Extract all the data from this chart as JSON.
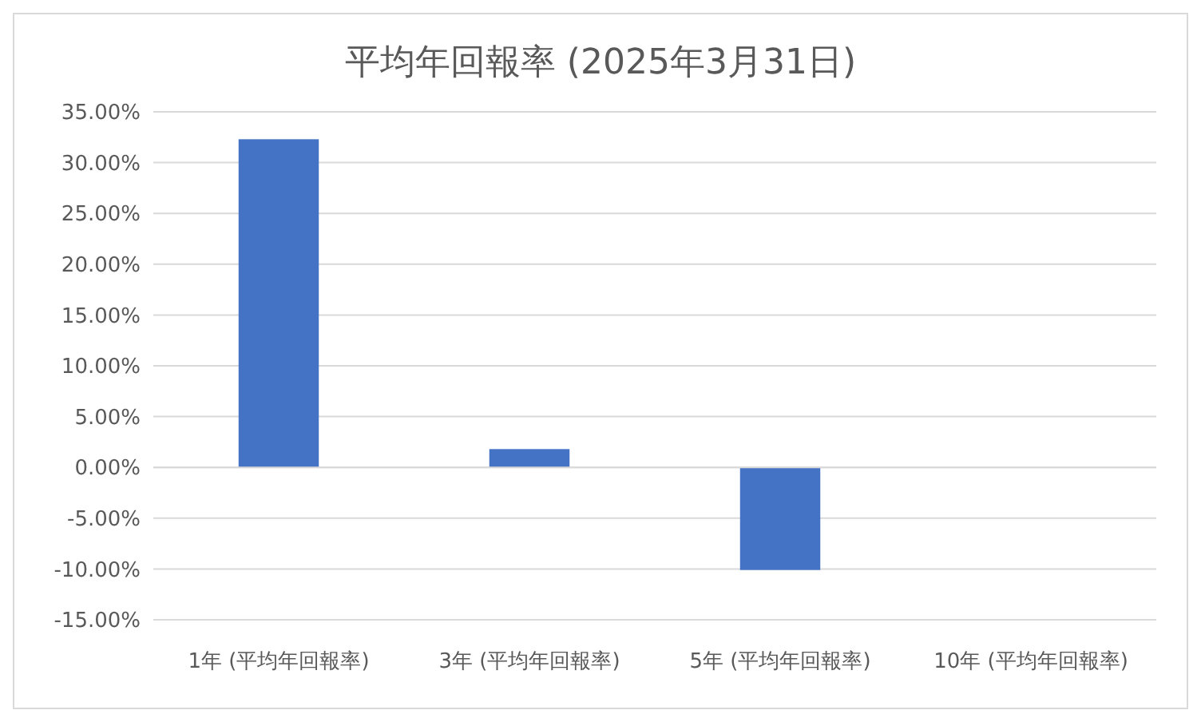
{
  "chart_data": {
    "type": "bar",
    "title": "平均年回報率 (2025年3月31日)",
    "categories": [
      "1年 (平均年回報率)",
      "3年 (平均年回報率)",
      "5年 (平均年回報率)",
      "10年 (平均年回報率)"
    ],
    "values": [
      32.3,
      1.8,
      -10.1,
      null
    ],
    "color": "#4472c4",
    "ylim": [
      -15,
      35
    ],
    "yticks": [
      {
        "value": -15,
        "label": "-15.00%"
      },
      {
        "value": -10,
        "label": "-10.00%"
      },
      {
        "value": -5,
        "label": "-5.00%"
      },
      {
        "value": 0,
        "label": "0.00%"
      },
      {
        "value": 5,
        "label": "5.00%"
      },
      {
        "value": 10,
        "label": "10.00%"
      },
      {
        "value": 15,
        "label": "15.00%"
      },
      {
        "value": 20,
        "label": "20.00%"
      },
      {
        "value": 25,
        "label": "25.00%"
      },
      {
        "value": 30,
        "label": "30.00%"
      },
      {
        "value": 35,
        "label": "35.00%"
      }
    ],
    "grid": "y"
  }
}
